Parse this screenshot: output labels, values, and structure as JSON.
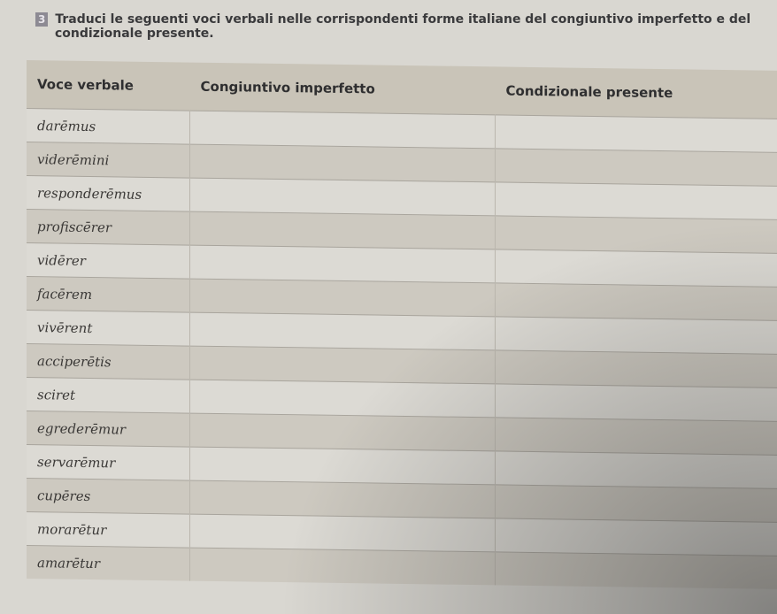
{
  "exercise": {
    "number": "3",
    "instruction_line1": "Traduci le seguenti voci verbali nelle corrispondenti forme italiane del congiuntivo imperfetto e del",
    "instruction_line2": "condizionale presente."
  },
  "table": {
    "headers": [
      "Voce verbale",
      "Congiuntivo imperfetto",
      "Condizionale presente"
    ],
    "rows": [
      "darēmus",
      "viderēmini",
      "responderēmus",
      "profiscērer",
      "vidērer",
      "facērem",
      "vivērent",
      "acciperētis",
      "sciret",
      "egrederēmur",
      "servarēmur",
      "cupēres",
      "morarētur",
      "amarētur"
    ]
  }
}
